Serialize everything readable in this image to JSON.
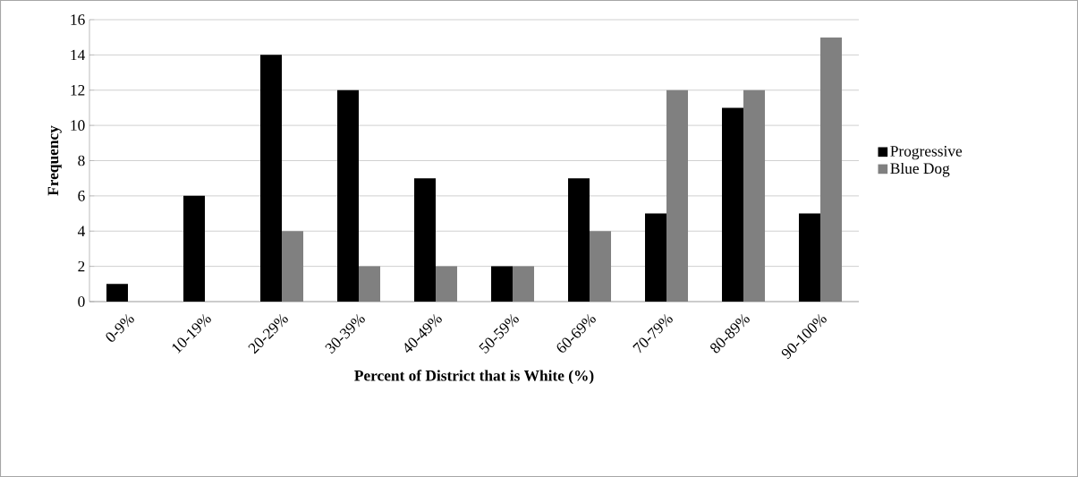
{
  "chart_data": {
    "type": "bar",
    "xlabel": "Percent of District that is White (%)",
    "ylabel": "Frequency",
    "categories": [
      "0-9%",
      "10-19%",
      "20-29%",
      "30-39%",
      "40-49%",
      "50-59%",
      "60-69%",
      "70-79%",
      "80-89%",
      "90-100%"
    ],
    "series": [
      {
        "name": "Progressive",
        "color": "#000000",
        "values": [
          1,
          6,
          14,
          12,
          7,
          2,
          7,
          5,
          11,
          5
        ]
      },
      {
        "name": "Blue Dog",
        "color": "#808080",
        "values": [
          0,
          0,
          4,
          2,
          2,
          2,
          4,
          12,
          12,
          15
        ]
      }
    ],
    "ylim": [
      0,
      16
    ],
    "yticks": [
      0,
      2,
      4,
      6,
      8,
      10,
      12,
      14,
      16
    ],
    "grid": "y",
    "legend": "right"
  }
}
